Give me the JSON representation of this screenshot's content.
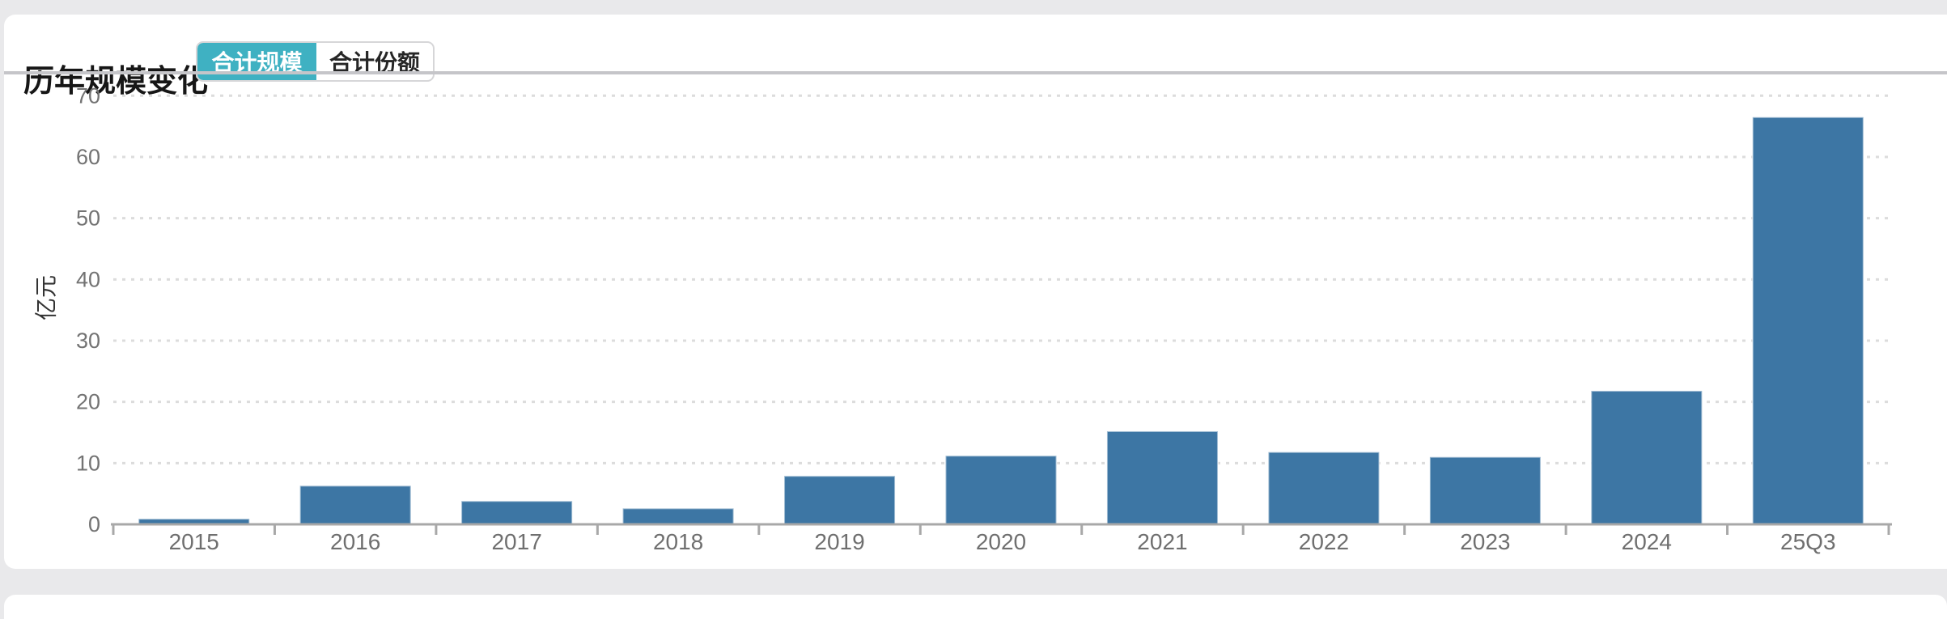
{
  "header": {
    "title": "历年规模变化",
    "tabs": [
      {
        "label": "合计规模",
        "active": true
      },
      {
        "label": "合计份额",
        "active": false
      }
    ],
    "active_tab_color": "#3fb1c2"
  },
  "chart_data": {
    "type": "bar",
    "title": "历年规模变化",
    "categories": [
      "2015",
      "2016",
      "2017",
      "2018",
      "2019",
      "2020",
      "2021",
      "2022",
      "2023",
      "2024",
      "25Q3"
    ],
    "values": [
      0.9,
      6.3,
      3.8,
      2.6,
      7.9,
      11.2,
      15.2,
      11.8,
      11.0,
      21.8,
      66.5
    ],
    "xlabel": "",
    "ylabel": "亿元",
    "ylim": [
      0,
      70
    ],
    "y_ticks": [
      0,
      10,
      20,
      30,
      40,
      50,
      60,
      70
    ],
    "grid": true,
    "gridline_style": "dotted",
    "legend_position": "none",
    "bar_color": "#3d76a4",
    "axis_color": "#a8a8a8",
    "gridline_color": "#dcdcdc",
    "tick_label_color": "#737373",
    "axis_name_color": "#333333"
  }
}
